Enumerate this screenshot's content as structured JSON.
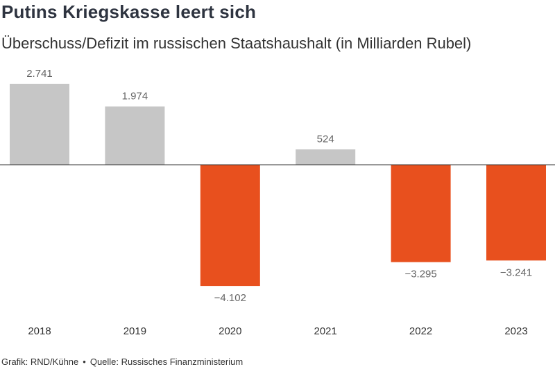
{
  "title": "Putins Kriegskasse leert sich",
  "subtitle": "Überschuss/Defizit im russischen Staatshaushalt (in Milliarden Rubel)",
  "footer": {
    "credit": "Grafik: RND/Kühne",
    "separator": "•",
    "source": "Quelle: Russisches Finanzministerium"
  },
  "colors": {
    "positive": "#c6c6c6",
    "negative": "#e8501e",
    "baseline": "#333333",
    "value_label": "#666666",
    "tick_label": "#333333"
  },
  "chart_data": {
    "type": "bar",
    "categories": [
      "2018",
      "2019",
      "2020",
      "2021",
      "2022",
      "2023"
    ],
    "values": [
      2741,
      1974,
      -4102,
      524,
      -3295,
      -3241
    ],
    "value_labels": [
      "2.741",
      "1.974",
      "−4.102",
      "524",
      "−3.295",
      "−3.241"
    ],
    "ylim": [
      -4102,
      2741
    ],
    "grid": false,
    "legend": "none"
  }
}
